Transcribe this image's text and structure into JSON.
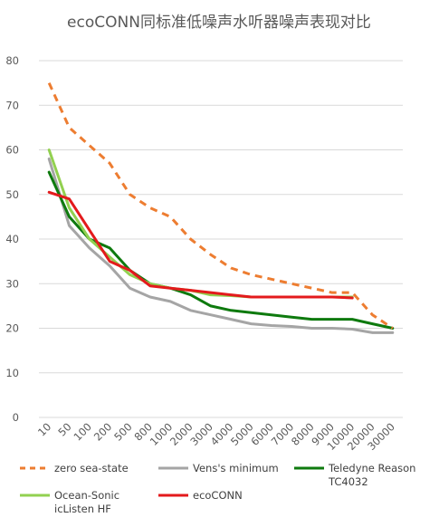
{
  "chart_data": {
    "type": "line",
    "title": "ecoCONN同标准低噪声水听器噪声表现对比",
    "xlabel": "",
    "ylabel": "",
    "ylim": [
      0,
      80
    ],
    "yticks": [
      0,
      10,
      20,
      30,
      40,
      50,
      60,
      70,
      80
    ],
    "grid": true,
    "legend_position": "bottom",
    "categories": [
      "10",
      "50",
      "100",
      "200",
      "500",
      "800",
      "1000",
      "2000",
      "3000",
      "4000",
      "5000",
      "6000",
      "7000",
      "8000",
      "9000",
      "10000",
      "20000",
      "30000"
    ],
    "series": [
      {
        "name": "zero sea-state",
        "color": "#ED7D31",
        "dash": true,
        "values": [
          75,
          65,
          61,
          57,
          50,
          47,
          45,
          40,
          36.5,
          33.5,
          32,
          31,
          30,
          29,
          28,
          28,
          23,
          20
        ]
      },
      {
        "name": "Vens's minimum",
        "color": "#A5A5A5",
        "dash": false,
        "values": [
          58,
          43,
          38,
          34,
          29,
          27,
          26,
          24,
          23,
          22,
          21,
          20.6,
          20.4,
          20,
          20,
          19.8,
          19,
          19
        ]
      },
      {
        "name": "Teledyne Reason TC4032",
        "color": "#0E7A0E",
        "dash": false,
        "values": [
          55,
          45,
          40,
          38,
          33,
          30,
          29,
          27.5,
          25,
          24,
          23.5,
          23,
          22.5,
          22,
          22,
          22,
          21,
          20
        ]
      },
      {
        "name": "Ocean-Sonic icListen HF",
        "color": "#92D050",
        "dash": false,
        "values": [
          60,
          47,
          40,
          36,
          32,
          30,
          29,
          28.5,
          27.5,
          27.3,
          27,
          27,
          27,
          27,
          27,
          27,
          null,
          null
        ]
      },
      {
        "name": "ecoCONN",
        "color": "#E31A1C",
        "dash": false,
        "values": [
          50.5,
          49,
          42,
          35,
          33,
          29.5,
          29,
          28.5,
          28,
          27.5,
          27,
          27,
          27,
          27,
          27,
          26.8,
          null,
          null
        ]
      }
    ]
  }
}
